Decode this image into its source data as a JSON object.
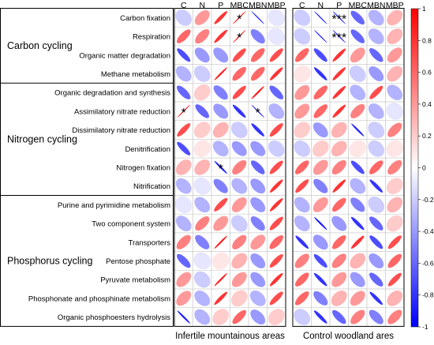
{
  "chart_data": {
    "type": "heatmap",
    "title": "",
    "columns": [
      "C",
      "N",
      "P",
      "MBC",
      "MBN",
      "MBP"
    ],
    "panels": [
      {
        "label": "Infertile mountainous areas"
      },
      {
        "label": "Control woodland ares"
      }
    ],
    "groups": [
      {
        "label": "Carbon cycling",
        "rows": [
          0,
          3
        ]
      },
      {
        "label": "Nitrogen cycling",
        "rows": [
          4,
          9
        ]
      },
      {
        "label": "Phosphorus cycling",
        "rows": [
          10,
          16
        ]
      }
    ],
    "rows": [
      "Carbon fixation",
      "Respiration",
      "Organic matter degradation",
      "Methane metabolism",
      "Organic degradation and synthesis",
      "Assimilatory nitrate reduction",
      "Dissimilatory nitrate reduction",
      "Denitrification",
      "Nitrogen fixation",
      "Nitrification",
      "Purine and pyrimidine metabolism",
      "Two component system",
      "Transporters",
      "Pentose phosphate",
      "Pyruvate metabolism",
      "Phosphonate and phosphinate metabolism",
      "Organic phosphoesters hydrolysis"
    ],
    "values": [
      [
        [
          -0.2,
          0.4,
          0.8,
          0.95,
          -0.95,
          -0.1
        ],
        [
          0.6,
          0.5,
          0.8,
          0.95,
          -0.5,
          -0.1
        ],
        [
          -0.7,
          -0.4,
          -0.4,
          0.7,
          0.6,
          0.7
        ],
        [
          -0.3,
          -0.2,
          0.9,
          0.6,
          0.6,
          0.8
        ],
        [
          -0.6,
          0.2,
          -0.5,
          0.7,
          0.9,
          -0.6
        ],
        [
          0.95,
          -0.6,
          -0.4,
          -0.8,
          -0.95,
          -0.3
        ],
        [
          0.7,
          0.2,
          0.3,
          -0.2,
          -0.8,
          0.7
        ],
        [
          -0.7,
          0.1,
          -0.3,
          -0.4,
          -0.4,
          -0.2
        ],
        [
          0.3,
          0.3,
          -0.9,
          0.5,
          -0.6,
          0.7
        ],
        [
          -0.3,
          -0.1,
          -0.5,
          -0.3,
          -0.4,
          0.8
        ],
        [
          -0.1,
          -0.3,
          0.7,
          0.4,
          -0.4,
          0.8
        ],
        [
          -0.3,
          0.5,
          0.4,
          -0.2,
          -0.5,
          0.7
        ],
        [
          0.5,
          -0.5,
          0.9,
          0.5,
          0.4,
          0.6
        ],
        [
          -0.6,
          -0.1,
          0.1,
          0.3,
          -0.4,
          0.7
        ],
        [
          0.4,
          -0.2,
          0.9,
          0.4,
          -0.4,
          0.8
        ],
        [
          0.4,
          -0.3,
          0.8,
          0.2,
          -0.3,
          0.7
        ],
        [
          -0.9,
          -0.3,
          0.2,
          0.6,
          -0.4,
          0.2
        ]
      ],
      [
        [
          -0.2,
          -0.95,
          -0.95,
          -0.6,
          -0.3,
          0.3
        ],
        [
          -0.2,
          -0.95,
          -0.95,
          -0.6,
          -0.3,
          0.3
        ],
        [
          0.6,
          -0.7,
          0.8,
          0.4,
          -0.6,
          0.4
        ],
        [
          0.1,
          -0.8,
          0.8,
          -0.2,
          -0.4,
          0.3
        ],
        [
          0.4,
          0.6,
          0.8,
          -0.3,
          0.7,
          -0.3
        ],
        [
          0.4,
          0.6,
          0.8,
          0.5,
          -0.3,
          -0.1
        ],
        [
          0.2,
          -0.4,
          0.3,
          -0.9,
          -0.2,
          0.5
        ],
        [
          -0.2,
          0.2,
          0.3,
          0.1,
          -0.2,
          0.1
        ],
        [
          0.6,
          0.4,
          0.5,
          -0.7,
          0.6,
          0.5
        ],
        [
          0.7,
          -0.5,
          0.8,
          -0.3,
          -0.8,
          0.2
        ],
        [
          -0.3,
          0.4,
          0.6,
          -0.5,
          -0.2,
          0.3
        ],
        [
          -0.3,
          -0.9,
          -0.4,
          -0.8,
          -0.6,
          0.2
        ],
        [
          -0.8,
          -0.4,
          0.6,
          0.8,
          -0.7,
          0.7
        ],
        [
          0.5,
          -0.7,
          0.5,
          0.3,
          -0.4,
          0.6
        ],
        [
          0.6,
          -0.8,
          0.4,
          -0.4,
          -0.6,
          0.7
        ],
        [
          0.6,
          -0.5,
          0.3,
          0.4,
          -0.8,
          0.3
        ],
        [
          -0.2,
          -0.8,
          -0.6,
          0.5,
          -0.5,
          0.5
        ]
      ]
    ],
    "significance": [
      [
        [
          "",
          "",
          "",
          "*",
          "",
          ""
        ],
        [
          "",
          "",
          "",
          "*",
          "",
          ""
        ],
        [
          "",
          "",
          "",
          "",
          "",
          ""
        ],
        [
          "",
          "",
          "",
          "",
          "",
          ""
        ],
        [
          "",
          "",
          "",
          "",
          "",
          ""
        ],
        [
          "*",
          "",
          "",
          "",
          "*",
          ""
        ],
        [
          "",
          "",
          "",
          "",
          "",
          ""
        ],
        [
          "",
          "",
          "",
          "",
          "",
          ""
        ],
        [
          "",
          "",
          "*",
          "",
          "",
          ""
        ],
        [
          "",
          "",
          "",
          "",
          "",
          ""
        ],
        [
          "",
          "",
          "",
          "",
          "",
          ""
        ],
        [
          "",
          "",
          "",
          "",
          "",
          ""
        ],
        [
          "",
          "",
          "",
          "",
          "",
          ""
        ],
        [
          "",
          "",
          "",
          "",
          "",
          ""
        ],
        [
          "",
          "",
          "",
          "",
          "",
          ""
        ],
        [
          "",
          "",
          "",
          "",
          "",
          ""
        ],
        [
          "",
          "",
          "",
          "",
          "",
          ""
        ]
      ],
      [
        [
          "",
          "",
          "***",
          "",
          "",
          ""
        ],
        [
          "",
          "",
          "***",
          "",
          "",
          ""
        ],
        [
          "",
          "",
          "",
          "",
          "",
          ""
        ],
        [
          "",
          "",
          "",
          "",
          "",
          ""
        ],
        [
          "",
          "",
          "",
          "",
          "",
          ""
        ],
        [
          "",
          "",
          "",
          "",
          "",
          ""
        ],
        [
          "",
          "",
          "",
          "",
          "",
          ""
        ],
        [
          "",
          "",
          "",
          "",
          "",
          ""
        ],
        [
          "",
          "",
          "",
          "",
          "",
          ""
        ],
        [
          "",
          "",
          "",
          "",
          "",
          ""
        ],
        [
          "",
          "",
          "",
          "",
          "",
          ""
        ],
        [
          "",
          "",
          "",
          "",
          "",
          ""
        ],
        [
          "",
          "",
          "",
          "",
          "",
          ""
        ],
        [
          "",
          "",
          "",
          "",
          "",
          ""
        ],
        [
          "",
          "",
          "",
          "",
          "",
          ""
        ],
        [
          "",
          "",
          "",
          "",
          "",
          ""
        ],
        [
          "",
          "",
          "",
          "",
          "",
          ""
        ]
      ]
    ],
    "colorbar": {
      "min": -1,
      "max": 1,
      "ticks": [
        -1,
        -0.8,
        -0.6,
        -0.4,
        -0.2,
        0,
        0.2,
        0.4,
        0.6,
        0.8,
        1
      ],
      "low_color": "#0000ff",
      "mid_color": "#ffffff",
      "high_color": "#ff0000"
    },
    "grid": true
  }
}
